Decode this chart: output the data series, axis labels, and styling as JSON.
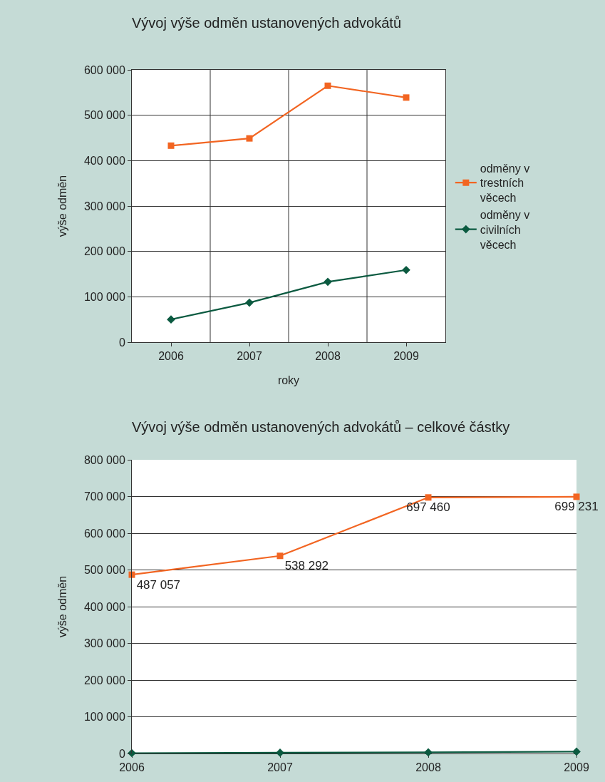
{
  "chart_data": [
    {
      "type": "line",
      "title": "Vývoj výše odměn ustanovených advokátů",
      "xlabel": "roky",
      "ylabel": "výše odměn",
      "categories": [
        "2006",
        "2007",
        "2008",
        "2009"
      ],
      "series": [
        {
          "name": "odměny v trestních věcech",
          "color": "#f26522",
          "marker": "square",
          "values": [
            433000,
            449000,
            565000,
            539000
          ]
        },
        {
          "name": "odměny v civilních věcech",
          "color": "#0b5a40",
          "marker": "diamond",
          "values": [
            50000,
            87000,
            133000,
            159000
          ]
        }
      ],
      "ylim": [
        0,
        600000
      ],
      "yticks": [
        {
          "value": 0,
          "label": "0"
        },
        {
          "value": 100000,
          "label": "100 000"
        },
        {
          "value": 200000,
          "label": "200 000"
        },
        {
          "value": 300000,
          "label": "300 000"
        },
        {
          "value": 400000,
          "label": "400 000"
        },
        {
          "value": 500000,
          "label": "500 000"
        },
        {
          "value": 600000,
          "label": "600 000"
        }
      ],
      "grid": true,
      "legend": "right"
    },
    {
      "type": "line",
      "title": "Vývoj výše odměn ustanovených advokátů – celkové částky",
      "ylabel": "výše odměn",
      "categories": [
        "2006",
        "2007",
        "2008",
        "2009"
      ],
      "series": [
        {
          "color": "#f26522",
          "marker": "square",
          "values": [
            487057,
            538292,
            697460,
            699231
          ],
          "value_labels": [
            "487 057",
            "538 292",
            "697 460",
            "699 231"
          ]
        },
        {
          "color": "#0b5a40",
          "marker": "diamond",
          "values": [
            1000,
            2000,
            3000,
            5000
          ]
        }
      ],
      "ylim": [
        0,
        800000
      ],
      "yticks": [
        {
          "value": 0,
          "label": "0"
        },
        {
          "value": 100000,
          "label": "100 000"
        },
        {
          "value": 200000,
          "label": "200 000"
        },
        {
          "value": 300000,
          "label": "300 000"
        },
        {
          "value": 400000,
          "label": "400 000"
        },
        {
          "value": 500000,
          "label": "500 000"
        },
        {
          "value": 600000,
          "label": "600 000"
        },
        {
          "value": 700000,
          "label": "700 000"
        },
        {
          "value": 800000,
          "label": "800 000"
        }
      ],
      "grid": "y",
      "legend": false
    }
  ]
}
